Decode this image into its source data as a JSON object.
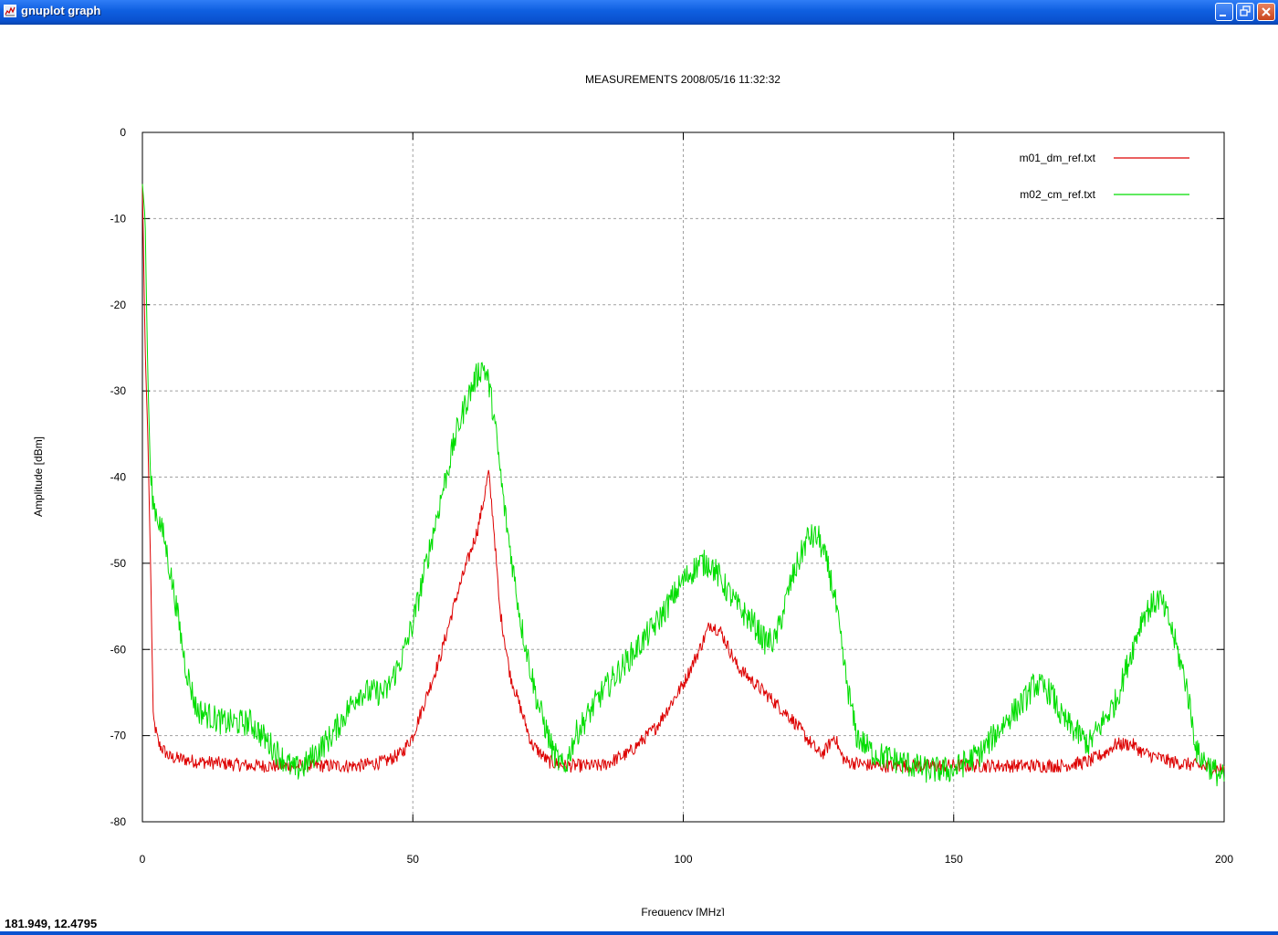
{
  "window": {
    "title": "gnuplot graph",
    "icon": "gnuplot-app-icon",
    "controls": {
      "minimize": "minimize-icon",
      "restore": "restore-icon",
      "close": "close-icon"
    }
  },
  "status": {
    "coordinates": "181.949,  12.4795"
  },
  "colors": {
    "series1": "#dd0000",
    "series2": "#00dd00",
    "grid": "#a0a0a0",
    "titlebar": "#0a52d0"
  },
  "chart_data": {
    "type": "line",
    "title": "MEASUREMENTS 2008/05/16 11:32:32",
    "xlabel": "Frequency [MHz]",
    "ylabel": "Amplitude [dBm]",
    "xlim": [
      0,
      200
    ],
    "ylim": [
      -80,
      0
    ],
    "xticks": [
      0,
      50,
      100,
      150,
      200
    ],
    "yticks": [
      0,
      -10,
      -20,
      -30,
      -40,
      -50,
      -60,
      -70,
      -80
    ],
    "grid": true,
    "legend_position": "top-right",
    "series": [
      {
        "name": "m01_dm_ref.txt",
        "color": "#dd0000",
        "x": [
          0,
          0.5,
          1,
          1.5,
          2,
          3,
          5,
          10,
          20,
          30,
          40,
          45,
          48,
          50,
          55,
          58,
          60,
          62,
          63,
          64,
          65,
          66,
          68,
          70,
          72,
          75,
          78,
          80,
          85,
          90,
          95,
          100,
          103,
          105,
          107,
          110,
          115,
          120,
          125,
          126,
          127,
          128,
          129,
          130,
          135,
          140,
          150,
          160,
          170,
          175,
          178,
          180,
          183,
          185,
          190,
          195,
          200
        ],
        "y": [
          -6,
          -25,
          -35,
          -50,
          -68,
          -71,
          -72.5,
          -73,
          -73.5,
          -73.5,
          -73.5,
          -73,
          -72,
          -70,
          -61,
          -54,
          -50,
          -46,
          -43,
          -39.5,
          -46,
          -55,
          -63,
          -67,
          -71,
          -73,
          -73.5,
          -73.5,
          -73.5,
          -72,
          -69,
          -64,
          -60,
          -57,
          -58,
          -62,
          -65,
          -68,
          -72,
          -72,
          -71,
          -70,
          -72,
          -73,
          -73.5,
          -73.5,
          -73.5,
          -73.5,
          -73.5,
          -73,
          -72,
          -71,
          -71,
          -72,
          -73,
          -73.5,
          -74
        ]
      },
      {
        "name": "m02_cm_ref.txt",
        "color": "#00dd00",
        "x": [
          0,
          0.5,
          1,
          1.5,
          2,
          4,
          6,
          8,
          10,
          15,
          20,
          25,
          28,
          30,
          35,
          40,
          45,
          48,
          50,
          55,
          58,
          60,
          62,
          63,
          64,
          65,
          67,
          70,
          73,
          76,
          78,
          80,
          85,
          90,
          95,
          100,
          103,
          105,
          107,
          110,
          113,
          115,
          117,
          120,
          123,
          125,
          127,
          128,
          130,
          132,
          135,
          140,
          145,
          150,
          155,
          160,
          163,
          165,
          168,
          170,
          175,
          180,
          183,
          185,
          188,
          190,
          193,
          195,
          198,
          200
        ],
        "y": [
          -6,
          -10,
          -28,
          -40,
          -43,
          -47,
          -54,
          -62,
          -67,
          -68.5,
          -68.5,
          -72,
          -74,
          -73.5,
          -70,
          -65,
          -65,
          -61,
          -57,
          -43,
          -35,
          -31,
          -28,
          -27,
          -29,
          -33,
          -44,
          -57,
          -66,
          -72,
          -74,
          -70,
          -65,
          -61,
          -57,
          -52,
          -50,
          -50,
          -52,
          -55,
          -57,
          -59,
          -59,
          -52,
          -47,
          -47,
          -51,
          -54,
          -63,
          -70,
          -72,
          -73,
          -74,
          -74,
          -72,
          -68,
          -66,
          -64,
          -65,
          -68,
          -71,
          -66,
          -60,
          -56,
          -54,
          -57,
          -64,
          -72,
          -74,
          -75
        ]
      }
    ]
  }
}
